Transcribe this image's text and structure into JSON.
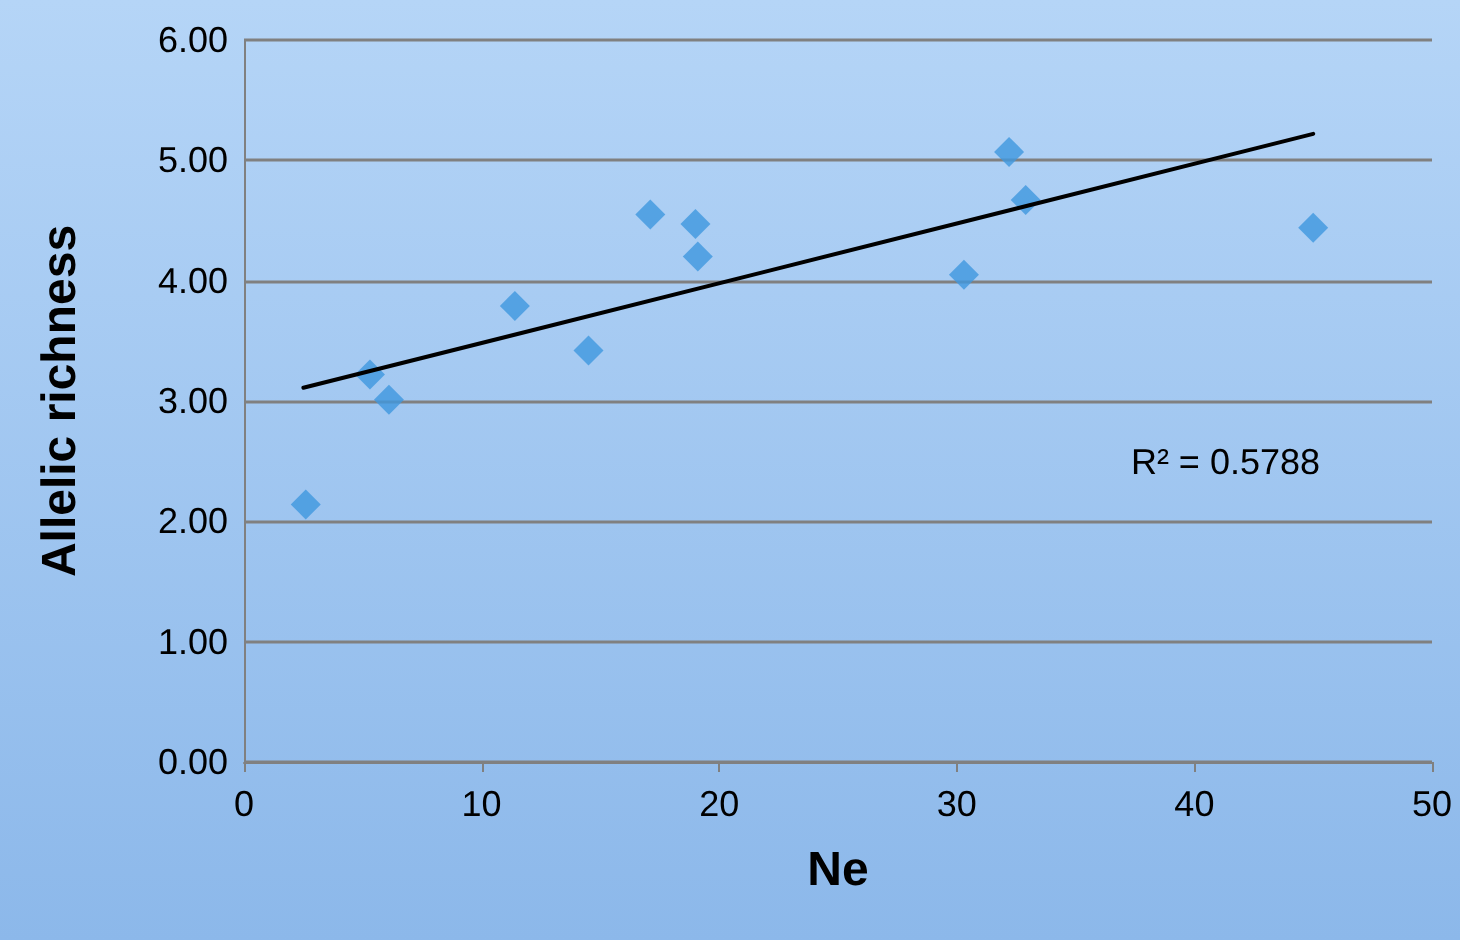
{
  "chart_data": {
    "type": "scatter",
    "xlabel": "Ne",
    "ylabel": "Allelic richness",
    "xlim": [
      0,
      50
    ],
    "xticks": [
      0,
      10,
      20,
      30,
      40,
      50
    ],
    "ylim": [
      0,
      6
    ],
    "yticks": [
      {
        "value": 0,
        "label": "0.00"
      },
      {
        "value": 1,
        "label": "1.00"
      },
      {
        "value": 2,
        "label": "2.00"
      },
      {
        "value": 3,
        "label": "3.00"
      },
      {
        "value": 4,
        "label": "4.00"
      },
      {
        "value": 5,
        "label": "5.00"
      },
      {
        "value": 6,
        "label": "6.00"
      }
    ],
    "grid": "y",
    "marker": "diamond",
    "series": [
      {
        "color": "#3f97de",
        "x": [
          2.6,
          5.3,
          6.1,
          11.4,
          14.5,
          17.1,
          19.0,
          19.1,
          30.3,
          32.2,
          32.9,
          45.0
        ],
        "values": [
          2.14,
          3.22,
          3.01,
          3.79,
          3.42,
          4.55,
          4.47,
          4.2,
          4.05,
          5.07,
          4.67,
          4.44
        ]
      },
      {
        "type": "line",
        "color": "#000000",
        "x": [
          2.5,
          45
        ],
        "values": [
          3.11,
          5.22
        ],
        "marker": "none"
      }
    ],
    "annotations": [
      "R² = 0.5788"
    ]
  }
}
